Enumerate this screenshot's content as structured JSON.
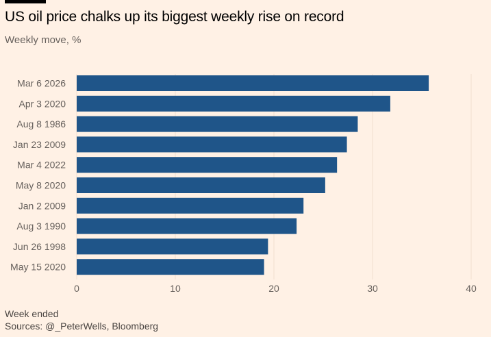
{
  "chart_data": {
    "type": "bar",
    "orientation": "horizontal",
    "title": "US oil price chalks up its biggest weekly rise on record",
    "subtitle": "Weekly move, %",
    "xlabel": "",
    "ylabel": "",
    "categories": [
      "Mar 6 2026",
      "Apr 3 2020",
      "Aug 8 1986",
      "Jan 23 2009",
      "Mar 4 2022",
      "May 8 2020",
      "Jan 2 2009",
      "Aug 3 1990",
      "Jun 26 1998",
      "May 15 2020"
    ],
    "values": [
      35.7,
      31.8,
      28.5,
      27.4,
      26.4,
      25.2,
      23.0,
      22.3,
      19.4,
      19.0
    ],
    "xlim": [
      0,
      40
    ],
    "xticks": [
      0,
      10,
      20,
      30,
      40
    ],
    "grid": true,
    "bar_color": "#1f5589",
    "notes": [
      "Week ended",
      "Sources: @_PeterWells, Bloomberg"
    ]
  }
}
